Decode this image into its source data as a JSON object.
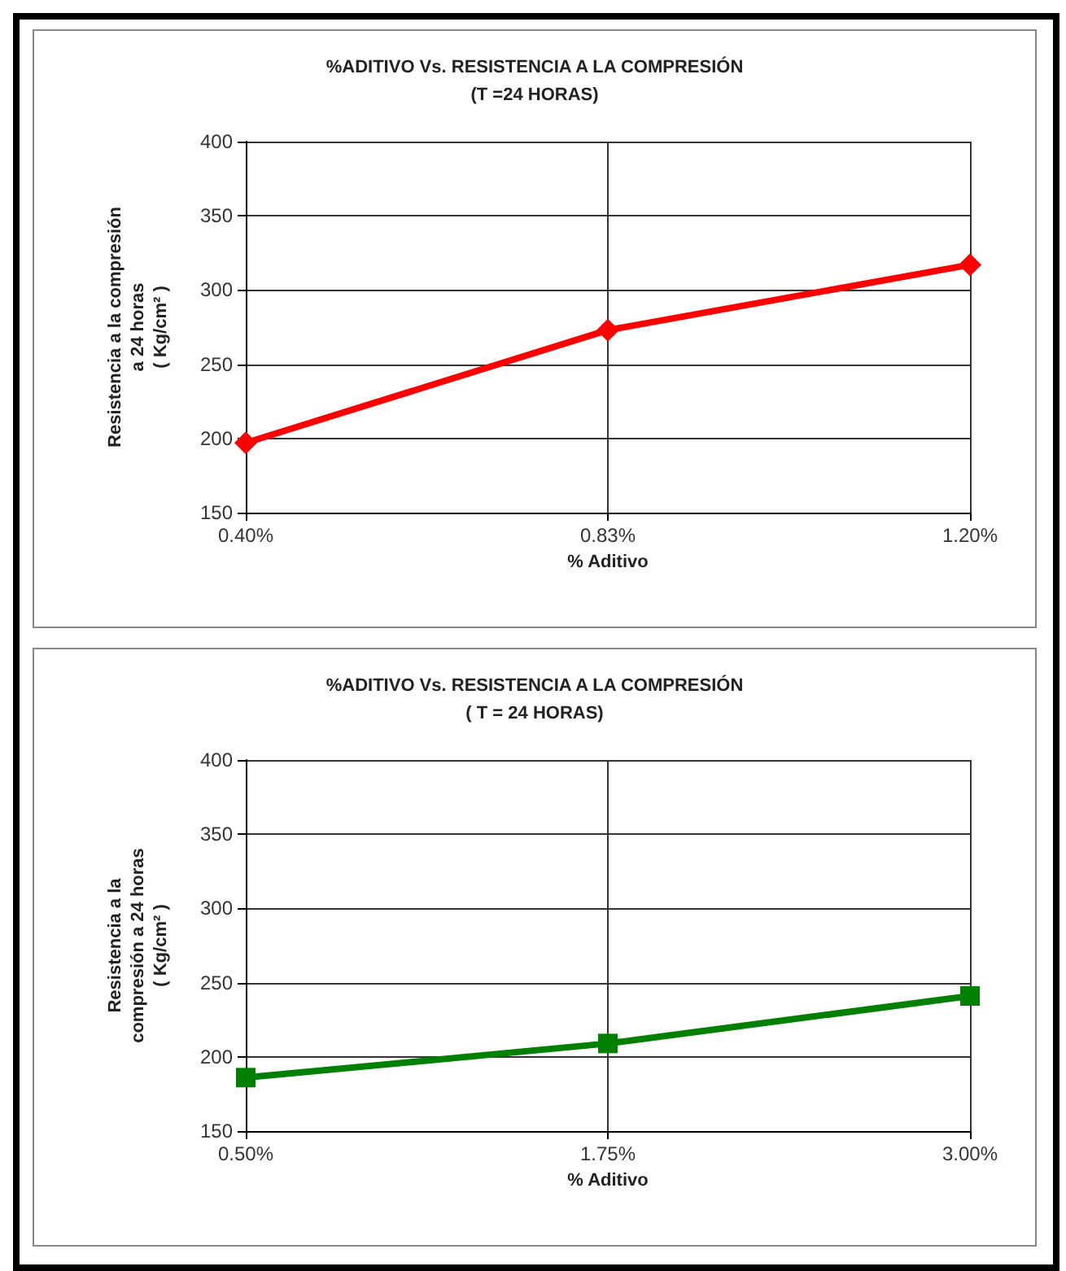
{
  "chart_data": [
    {
      "type": "line",
      "title": "%ADITIVO Vs. RESISTENCIA A LA COMPRESIÓN",
      "subtitle": "(T =24 HORAS)",
      "xlabel": "% Aditivo",
      "ylabel": "Resistencia a la compresión\na 24 horas\n( Kg/cm² )",
      "categories": [
        "0.40%",
        "0.83%",
        "1.20%"
      ],
      "series": [
        {
          "color": "#ff0000",
          "values": [
            197,
            273,
            317
          ]
        }
      ],
      "ylim": [
        150,
        400
      ],
      "yticks": [
        150,
        200,
        250,
        300,
        350,
        400
      ],
      "grid": true,
      "marker": "diamond",
      "line_style": "solid"
    },
    {
      "type": "line",
      "title": "%ADITIVO Vs. RESISTENCIA A LA COMPRESIÓN",
      "subtitle": "( T = 24 HORAS)",
      "xlabel": "% Aditivo",
      "ylabel": "Resistencia a la\ncompresión a 24 horas\n( Kg/cm² )",
      "categories": [
        "0.50%",
        "1.75%",
        "3.00%"
      ],
      "series": [
        {
          "color": "#008000",
          "values": [
            186,
            209,
            241
          ]
        }
      ],
      "ylim": [
        150,
        400
      ],
      "yticks": [
        150,
        200,
        250,
        300,
        350,
        400
      ],
      "grid": true,
      "marker": "square",
      "line_style": "solid"
    }
  ]
}
